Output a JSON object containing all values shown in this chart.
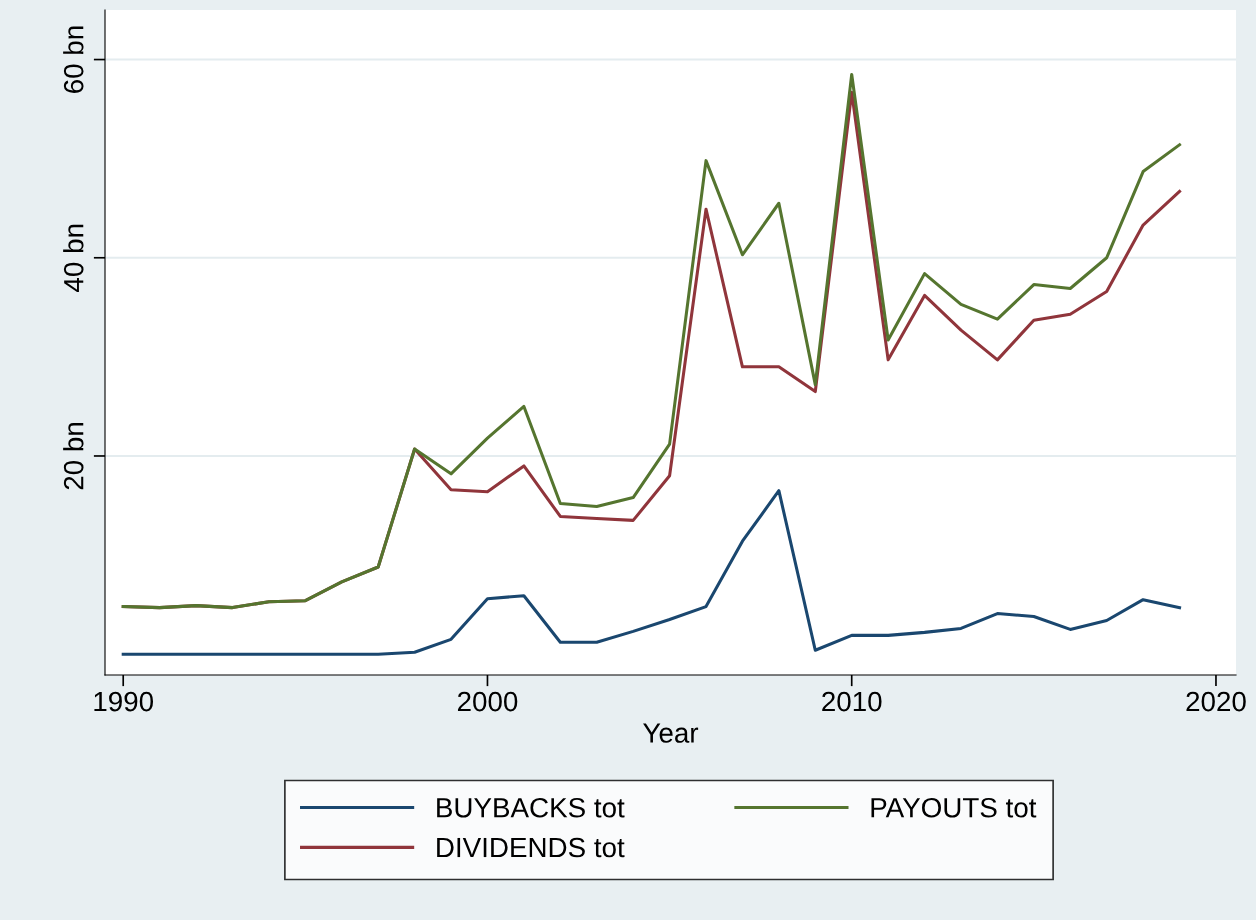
{
  "chart_data": {
    "type": "line",
    "xlabel": "Year",
    "x": [
      1990,
      1991,
      1992,
      1993,
      1994,
      1995,
      1996,
      1997,
      1998,
      1999,
      2000,
      2001,
      2002,
      2003,
      2004,
      2005,
      2006,
      2007,
      2008,
      2009,
      2010,
      2011,
      2012,
      2013,
      2014,
      2015,
      2016,
      2017,
      2018,
      2019
    ],
    "series": [
      {
        "name": "BUYBACKS tot",
        "color": "#1a476f",
        "values": [
          0.0,
          0.0,
          0.0,
          0.0,
          0.0,
          0.0,
          0.0,
          0.0,
          0.2,
          1.5,
          5.6,
          5.9,
          1.2,
          1.2,
          2.3,
          3.5,
          4.8,
          11.4,
          16.5,
          0.4,
          1.9,
          1.9,
          2.2,
          2.6,
          4.1,
          3.8,
          2.5,
          3.4,
          5.5,
          4.7
        ]
      },
      {
        "name": "DIVIDENDS tot",
        "color": "#90353b",
        "values": [
          4.8,
          4.7,
          4.9,
          4.7,
          5.3,
          5.4,
          7.3,
          8.8,
          20.7,
          16.6,
          16.4,
          19.0,
          13.9,
          13.7,
          13.5,
          18.0,
          44.9,
          29.0,
          29.0,
          26.5,
          56.7,
          29.7,
          36.2,
          32.7,
          29.7,
          33.7,
          34.3,
          36.6,
          43.3,
          46.7
        ]
      },
      {
        "name": "PAYOUTS tot",
        "color": "#55752f",
        "values": [
          4.8,
          4.7,
          4.9,
          4.7,
          5.3,
          5.4,
          7.3,
          8.8,
          20.7,
          18.2,
          21.8,
          25.0,
          15.2,
          14.9,
          15.8,
          21.2,
          49.8,
          40.3,
          45.5,
          27.2,
          58.5,
          31.7,
          38.4,
          35.3,
          33.8,
          37.3,
          36.9,
          40.0,
          48.7,
          51.4
        ]
      }
    ],
    "xlim": [
      1989.5,
      2020.55
    ],
    "xticks": [
      1990,
      2000,
      2010,
      2020
    ],
    "ylim": [
      -2.1,
      65
    ],
    "yticks": [
      {
        "value": 20,
        "label": "20 bn"
      },
      {
        "value": 40,
        "label": "40 bn"
      },
      {
        "value": 60,
        "label": "60 bn"
      }
    ],
    "grid": "y",
    "legend": "bottom",
    "marker": "none",
    "line_style": "solid"
  }
}
